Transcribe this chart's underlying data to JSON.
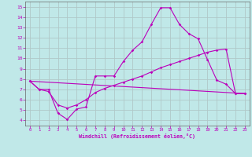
{
  "bg_color": "#c0e8e8",
  "grid_color": "#b0c8c8",
  "line_color": "#bb00bb",
  "xlim": [
    -0.5,
    23.5
  ],
  "ylim": [
    3.5,
    15.5
  ],
  "xticks": [
    0,
    1,
    2,
    3,
    4,
    5,
    6,
    7,
    8,
    9,
    10,
    11,
    12,
    13,
    14,
    15,
    16,
    17,
    18,
    19,
    20,
    21,
    22,
    23
  ],
  "yticks": [
    4,
    5,
    6,
    7,
    8,
    9,
    10,
    11,
    12,
    13,
    14,
    15
  ],
  "xlabel": "Windchill (Refroidissement éolien,°C)",
  "line1_x": [
    0,
    1,
    2,
    3,
    4,
    5,
    6,
    7,
    8,
    9,
    10,
    11,
    12,
    13,
    14,
    15,
    16,
    17,
    18,
    19,
    20,
    21,
    22,
    23
  ],
  "line1_y": [
    7.8,
    7.0,
    7.0,
    4.7,
    4.1,
    5.1,
    5.3,
    8.3,
    8.3,
    8.3,
    9.7,
    10.8,
    11.6,
    13.3,
    14.9,
    14.9,
    13.3,
    12.4,
    11.9,
    9.9,
    7.9,
    7.5,
    6.6,
    6.6
  ],
  "line2_x": [
    0,
    1,
    2,
    3,
    4,
    5,
    6,
    7,
    8,
    9,
    10,
    11,
    12,
    13,
    14,
    15,
    16,
    17,
    18,
    19,
    20,
    21,
    22,
    23
  ],
  "line2_y": [
    7.8,
    7.0,
    6.8,
    5.5,
    5.2,
    5.5,
    6.0,
    6.7,
    7.1,
    7.4,
    7.7,
    8.0,
    8.3,
    8.7,
    9.1,
    9.4,
    9.7,
    10.0,
    10.3,
    10.6,
    10.8,
    10.9,
    6.6,
    6.6
  ],
  "line3_x": [
    0,
    23
  ],
  "line3_y": [
    7.8,
    6.6
  ]
}
